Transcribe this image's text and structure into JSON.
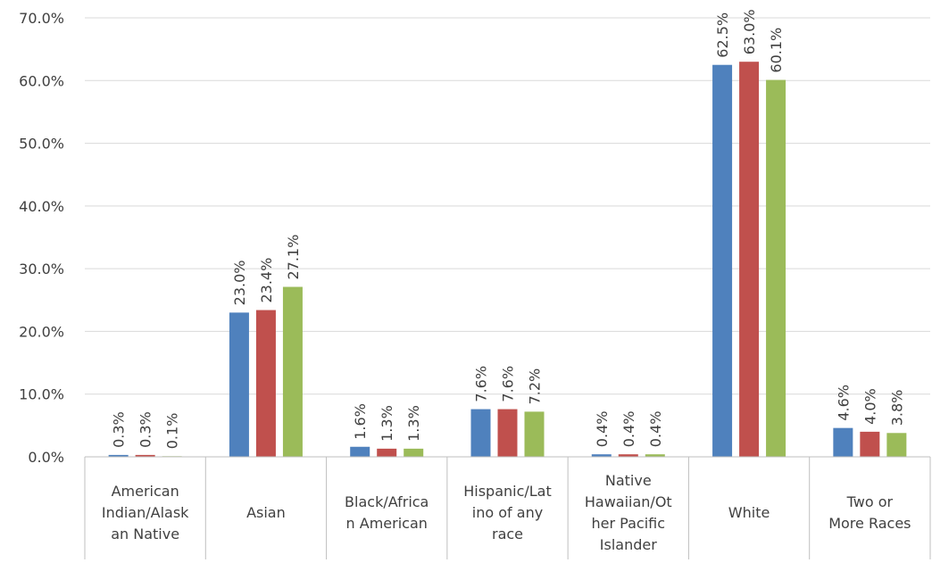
{
  "chart_data": {
    "type": "bar",
    "categories": [
      [
        "American",
        "Indian/Alask",
        "an Native"
      ],
      [
        "Asian"
      ],
      [
        "Black/Africa",
        "n American"
      ],
      [
        "Hispanic/Lat",
        "ino of any",
        "race"
      ],
      [
        "Native",
        "Hawaiian/Ot",
        "her Pacific",
        "Islander"
      ],
      [
        "White"
      ],
      [
        "Two or",
        "More Races"
      ]
    ],
    "series": [
      {
        "color": "#4f81bd",
        "values": [
          0.3,
          23.0,
          1.6,
          7.6,
          0.4,
          62.5,
          4.6
        ],
        "labels": [
          "0.3%",
          "23.0%",
          "1.6%",
          "7.6%",
          "0.4%",
          "62.5%",
          "4.6%"
        ]
      },
      {
        "color": "#c0504d",
        "values": [
          0.3,
          23.4,
          1.3,
          7.6,
          0.4,
          63.0,
          4.0
        ],
        "labels": [
          "0.3%",
          "23.4%",
          "1.3%",
          "7.6%",
          "0.4%",
          "63.0%",
          "4.0%"
        ]
      },
      {
        "color": "#9bbb59",
        "values": [
          0.1,
          27.1,
          1.3,
          7.2,
          0.4,
          60.1,
          3.8
        ],
        "labels": [
          "0.1%",
          "27.1%",
          "1.3%",
          "7.2%",
          "0.4%",
          "60.1%",
          "3.8%"
        ]
      }
    ],
    "yticks": [
      "0.0%",
      "10.0%",
      "20.0%",
      "30.0%",
      "40.0%",
      "50.0%",
      "60.0%",
      "70.0%"
    ],
    "ytick_values": [
      0,
      10,
      20,
      30,
      40,
      50,
      60,
      70
    ],
    "ylim": [
      0,
      70
    ],
    "grid": true,
    "grid_color": "#d9d9d9",
    "axis_color": "#bfbfbf"
  }
}
